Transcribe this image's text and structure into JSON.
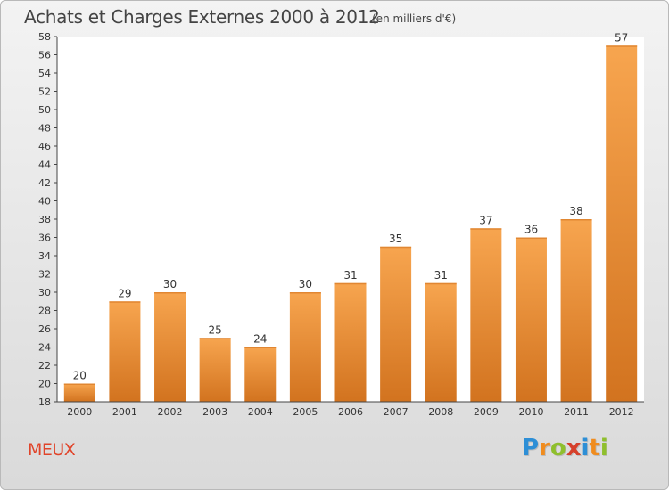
{
  "header": {
    "title": "Achats et Charges Externes 2000 à 2012",
    "subtitle": "(en milliers d'€)"
  },
  "footer": {
    "commune": "MEUX",
    "logo": "Proxiti"
  },
  "colors": {
    "bar_light": "#f7a54f",
    "bar_dark": "#d2731f",
    "commune": "#e0442a",
    "logo_letters": [
      "#2e8fd6",
      "#f08c1e",
      "#8fbf2d",
      "#d6402b",
      "#2e8fd6",
      "#f08c1e",
      "#8fbf2d"
    ]
  },
  "chart_data": {
    "type": "bar",
    "title": "Achats et Charges Externes 2000 à 2012",
    "subtitle": "(en milliers d'€)",
    "categories": [
      "2000",
      "2001",
      "2002",
      "2003",
      "2004",
      "2005",
      "2006",
      "2007",
      "2008",
      "2009",
      "2010",
      "2011",
      "2012"
    ],
    "values": [
      20,
      29,
      30,
      25,
      24,
      30,
      31,
      35,
      31,
      37,
      36,
      38,
      57
    ],
    "ylim": [
      18,
      58
    ],
    "ytick_step": 2,
    "grid": false,
    "data_labels": true
  }
}
